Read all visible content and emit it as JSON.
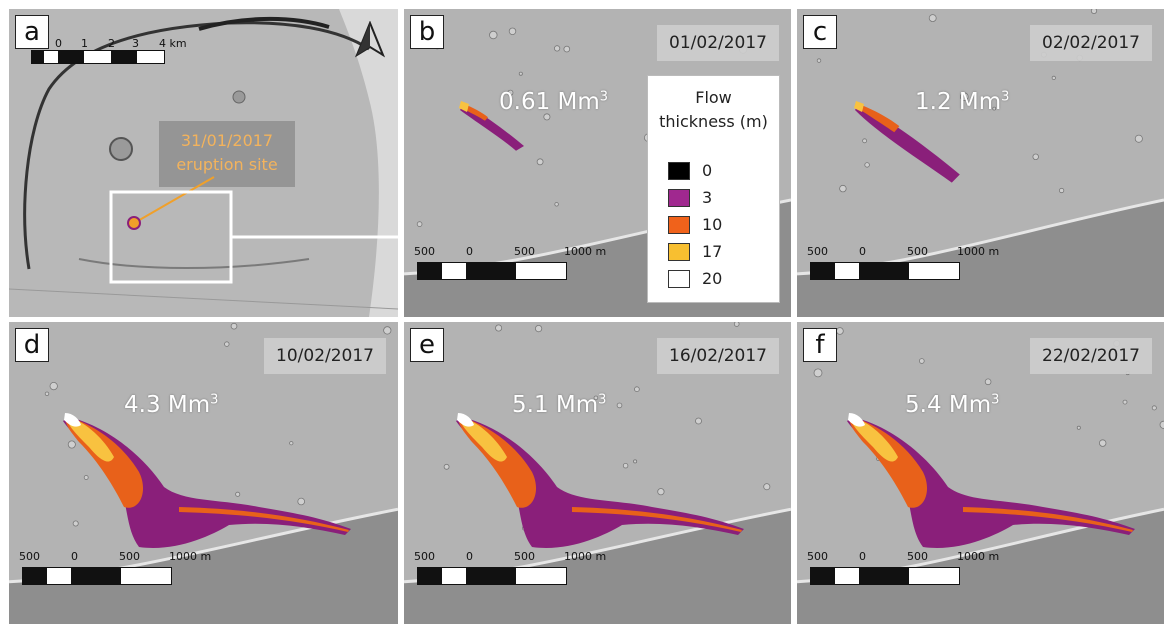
{
  "colors": {
    "terrain": "#b3b3b3",
    "terrain_dark": "#8e8e8e",
    "flow_low": "#8a1f7a",
    "flow_mid": "#e8611a",
    "flow_high": "#f8c240",
    "flow_peak": "#ffffff",
    "eruption_marker": "#f0a02a",
    "accent_text": "#f3b35c"
  },
  "overview": {
    "letter": "a",
    "scale_labels": [
      "0",
      "1",
      "2",
      "3",
      "4 km"
    ],
    "eruption_label_line1": "31/01/2017",
    "eruption_label_line2": "eruption site",
    "north_arrow_icon": "north-arrow-icon"
  },
  "legend": {
    "title_line1": "Flow",
    "title_line2": "thickness (m)",
    "classes": [
      {
        "value": "0",
        "color": "#000000"
      },
      {
        "value": "3",
        "color": "#a0288f"
      },
      {
        "value": "10",
        "color": "#f0621b"
      },
      {
        "value": "17",
        "color": "#f8bf30"
      },
      {
        "value": "20",
        "color": "#ffffff"
      }
    ]
  },
  "scalebar": {
    "label_left": "500",
    "label_zero": "0",
    "label_mid": "500",
    "label_end": "1000 m"
  },
  "panels": [
    {
      "letter": "b",
      "date": "01/02/2017",
      "volume": "0.61 Mm",
      "volume_unit_exp": "3",
      "extent": 0.25
    },
    {
      "letter": "c",
      "date": "02/02/2017",
      "volume": "1.2 Mm",
      "volume_unit_exp": "3",
      "extent": 0.42
    },
    {
      "letter": "d",
      "date": "10/02/2017",
      "volume": "4.3 Mm",
      "volume_unit_exp": "3",
      "extent": 1.0
    },
    {
      "letter": "e",
      "date": "16/02/2017",
      "volume": "5.1 Mm",
      "volume_unit_exp": "3",
      "extent": 1.0
    },
    {
      "letter": "f",
      "date": "22/02/2017",
      "volume": "5.4 Mm",
      "volume_unit_exp": "3",
      "extent": 1.0
    }
  ]
}
